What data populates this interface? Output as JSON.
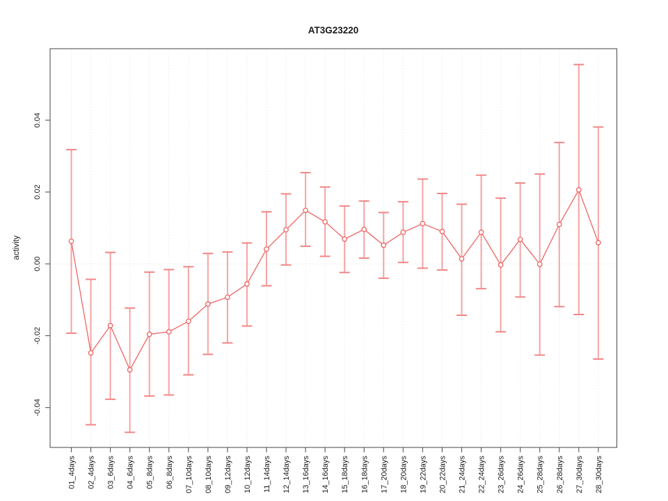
{
  "chart_data": {
    "type": "line",
    "title": "AT3G23220",
    "xlabel": "",
    "ylabel": "activity",
    "categories": [
      "01_4days",
      "02_4days",
      "03_6days",
      "04_6days",
      "05_8days",
      "06_8days",
      "07_10days",
      "08_10days",
      "09_12days",
      "10_12days",
      "11_14days",
      "12_14days",
      "13_16days",
      "14_16days",
      "15_18days",
      "16_18days",
      "17_20days",
      "18_20days",
      "19_22days",
      "20_22days",
      "21_24days",
      "22_24days",
      "23_26days",
      "24_26days",
      "25_28days",
      "26_28days",
      "27_30days",
      "28_30days"
    ],
    "series": [
      {
        "name": "activity",
        "values": [
          0.0063,
          -0.0248,
          -0.0172,
          -0.0295,
          -0.0196,
          -0.0189,
          -0.016,
          -0.0112,
          -0.0093,
          -0.0056,
          0.0041,
          0.0095,
          0.0149,
          0.0117,
          0.0069,
          0.0096,
          0.0052,
          0.0088,
          0.0112,
          0.009,
          0.0014,
          0.0088,
          -0.0003,
          0.0068,
          -0.0001,
          0.011,
          0.0206,
          0.0059
        ],
        "error_high": [
          0.0318,
          -0.0043,
          0.0032,
          -0.0123,
          -0.0023,
          -0.0016,
          -0.0008,
          0.0029,
          0.0033,
          0.0058,
          0.0145,
          0.0195,
          0.0254,
          0.0214,
          0.0161,
          0.0175,
          0.0143,
          0.0173,
          0.0236,
          0.0196,
          0.0166,
          0.0247,
          0.0183,
          0.0225,
          0.025,
          0.0338,
          0.0555,
          0.0381
        ],
        "error_low": [
          -0.0193,
          -0.0448,
          -0.0377,
          -0.0469,
          -0.0368,
          -0.0365,
          -0.0309,
          -0.0252,
          -0.022,
          -0.0173,
          -0.0061,
          -0.0003,
          0.0049,
          0.0021,
          -0.0024,
          0.0016,
          -0.004,
          0.0004,
          -0.0012,
          -0.0017,
          -0.0143,
          -0.0069,
          -0.0189,
          -0.0092,
          -0.0254,
          -0.0119,
          -0.0141,
          -0.0265
        ]
      }
    ],
    "yticks": {
      "values": [
        -0.04,
        -0.02,
        0.0,
        0.02,
        0.04
      ],
      "labels": [
        "-0.04",
        "-0.02",
        "0.00",
        "0.02",
        "0.04"
      ]
    },
    "ylim": [
      -0.0511,
      0.0599
    ],
    "grid": "vertical dotted line per category; dotted horizontal line at y=0 only",
    "legend": "none",
    "marker": "open-circle",
    "colors": {
      "line": "#ee6363",
      "point_stroke": "#ee6363",
      "point_fill": "#ffffff",
      "error_bar": "#f5a3a3",
      "error_cap": "#f28585",
      "grid": "#e3e3e3",
      "zero_line": "#e0dede",
      "axis": "#555555",
      "text": "#1a1a1a"
    }
  }
}
